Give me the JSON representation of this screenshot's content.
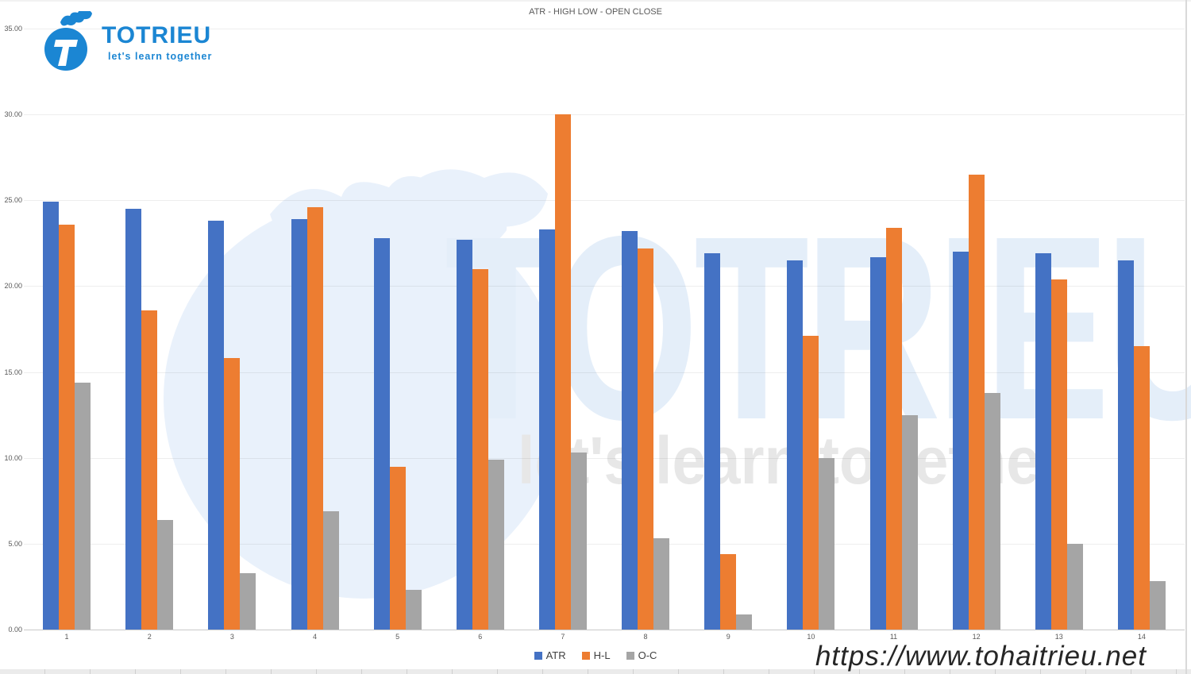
{
  "header": {
    "title": "ATR - HIGH LOW - OPEN CLOSE"
  },
  "logo": {
    "name": "TOTRIEU",
    "tagline": "let's learn together",
    "color": "#1b86d3"
  },
  "watermark": {
    "brand": "TOTRIEU",
    "tagline": "let's learn together",
    "url": "https://www.tohaitrieu.net"
  },
  "chart_data": {
    "type": "bar",
    "title": "ATR - HIGH LOW - OPEN CLOSE",
    "categories": [
      "1",
      "2",
      "3",
      "4",
      "5",
      "6",
      "7",
      "8",
      "9",
      "10",
      "11",
      "12",
      "13",
      "14"
    ],
    "series": [
      {
        "name": "ATR",
        "color": "#4472C4",
        "values": [
          24.9,
          24.5,
          23.8,
          23.9,
          22.8,
          22.7,
          23.3,
          23.2,
          21.9,
          21.5,
          21.7,
          22.0,
          21.9,
          21.5
        ]
      },
      {
        "name": "H-L",
        "color": "#ED7D31",
        "values": [
          23.6,
          18.6,
          15.8,
          24.6,
          9.5,
          21.0,
          30.0,
          22.2,
          4.4,
          17.1,
          23.4,
          26.5,
          20.4,
          16.5
        ]
      },
      {
        "name": "O-C",
        "color": "#A5A5A5",
        "values": [
          14.4,
          6.4,
          3.3,
          6.9,
          2.3,
          9.9,
          10.3,
          5.3,
          0.9,
          10.0,
          12.5,
          13.8,
          5.0,
          2.8
        ]
      }
    ],
    "ylim": [
      0,
      35
    ],
    "ytick_step": 5,
    "ytick_format": "two_decimals",
    "grid": true,
    "legend_position": "bottom"
  }
}
